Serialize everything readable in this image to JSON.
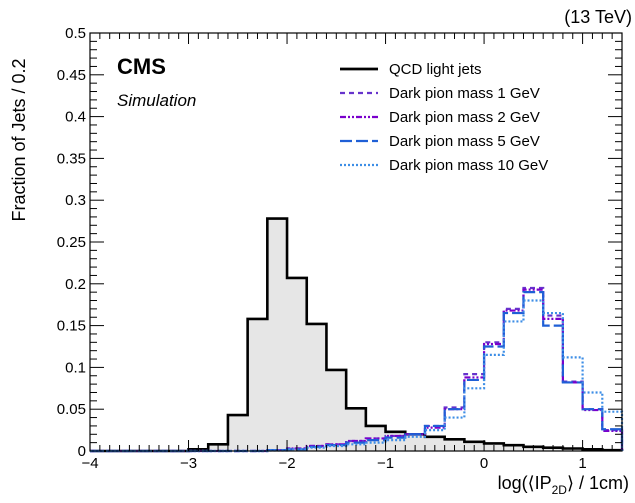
{
  "chart_data": {
    "type": "line",
    "style": "step-histogram",
    "energy_label": "(13 TeV)",
    "experiment": "CMS",
    "subtitle": "Simulation",
    "xlabel_prefix": "log(⟨IP",
    "xlabel_sub": "2D",
    "xlabel_suffix": "⟩ / 1cm)",
    "ylabel": "Fraction of Jets / 0.2",
    "xlim": [
      -4,
      1.4
    ],
    "ylim": [
      0,
      0.5
    ],
    "xticks": [
      -4,
      -3,
      -2,
      -1,
      0,
      1
    ],
    "xtick_labels": [
      "−4",
      "−3",
      "−2",
      "−1",
      "0",
      "1"
    ],
    "yticks": [
      0,
      0.05,
      0.1,
      0.15,
      0.2,
      0.25,
      0.3,
      0.35,
      0.4,
      0.45,
      0.5
    ],
    "ytick_labels": [
      "0",
      "0.05",
      "0.1",
      "0.15",
      "0.2",
      "0.25",
      "0.3",
      "0.35",
      "0.4",
      "0.45",
      "0.5"
    ],
    "bin_width": 0.2,
    "bin_edges_start": -4.0,
    "legend_position": "top-right",
    "series": [
      {
        "name": "QCD light jets",
        "color": "#000000",
        "dash": "solid",
        "filled": true,
        "fill_color": "#e6e6e6",
        "values": [
          0,
          0,
          0,
          0,
          0,
          0.002,
          0.008,
          0.043,
          0.158,
          0.278,
          0.207,
          0.152,
          0.097,
          0.051,
          0.03,
          0.023,
          0.02,
          0.017,
          0.014,
          0.011,
          0.009,
          0.007,
          0.005,
          0.004,
          0.003,
          0.002,
          0.001
        ]
      },
      {
        "name": "Dark pion mass 1 GeV",
        "color": "#6633cc",
        "dash": "5,4",
        "filled": false,
        "values": [
          0,
          0,
          0,
          0,
          0,
          0,
          0,
          0,
          0,
          0.001,
          0.003,
          0.006,
          0.008,
          0.012,
          0.015,
          0.018,
          0.02,
          0.03,
          0.052,
          0.092,
          0.13,
          0.17,
          0.195,
          0.162,
          0.083,
          0.05,
          0.025,
          0.012,
          0.004,
          0.001,
          0.0005,
          0,
          0,
          0
        ]
      },
      {
        "name": "Dark pion mass 2 GeV",
        "color": "#7a00cc",
        "dash": "6,2,2,2,2,2",
        "filled": false,
        "values": [
          0,
          0,
          0,
          0,
          0,
          0,
          0,
          0,
          0,
          0.001,
          0.003,
          0.006,
          0.008,
          0.012,
          0.015,
          0.018,
          0.02,
          0.028,
          0.05,
          0.088,
          0.128,
          0.168,
          0.193,
          0.158,
          0.082,
          0.049,
          0.024,
          0.011,
          0.004,
          0.001,
          0.0005,
          0,
          0,
          0
        ]
      },
      {
        "name": "Dark pion mass 5 GeV",
        "color": "#1f5fd6",
        "dash": "12,4",
        "filled": false,
        "values": [
          0,
          0,
          0,
          0,
          0,
          0,
          0,
          0,
          0,
          0.001,
          0.002,
          0.005,
          0.007,
          0.01,
          0.013,
          0.016,
          0.02,
          0.03,
          0.05,
          0.085,
          0.125,
          0.165,
          0.19,
          0.15,
          0.082,
          0.05,
          0.026,
          0.012,
          0.005,
          0.002,
          0.001,
          0,
          0,
          0
        ]
      },
      {
        "name": "Dark pion mass 10 GeV",
        "color": "#3d8ee6",
        "dash": "2,2",
        "filled": false,
        "values": [
          0,
          0,
          0,
          0,
          0,
          0,
          0,
          0,
          0,
          0.0005,
          0.002,
          0.004,
          0.006,
          0.008,
          0.01,
          0.013,
          0.017,
          0.025,
          0.04,
          0.075,
          0.115,
          0.155,
          0.18,
          0.165,
          0.112,
          0.07,
          0.047,
          0.02,
          0.008,
          0.003,
          0.001,
          0,
          0,
          0
        ]
      }
    ]
  }
}
